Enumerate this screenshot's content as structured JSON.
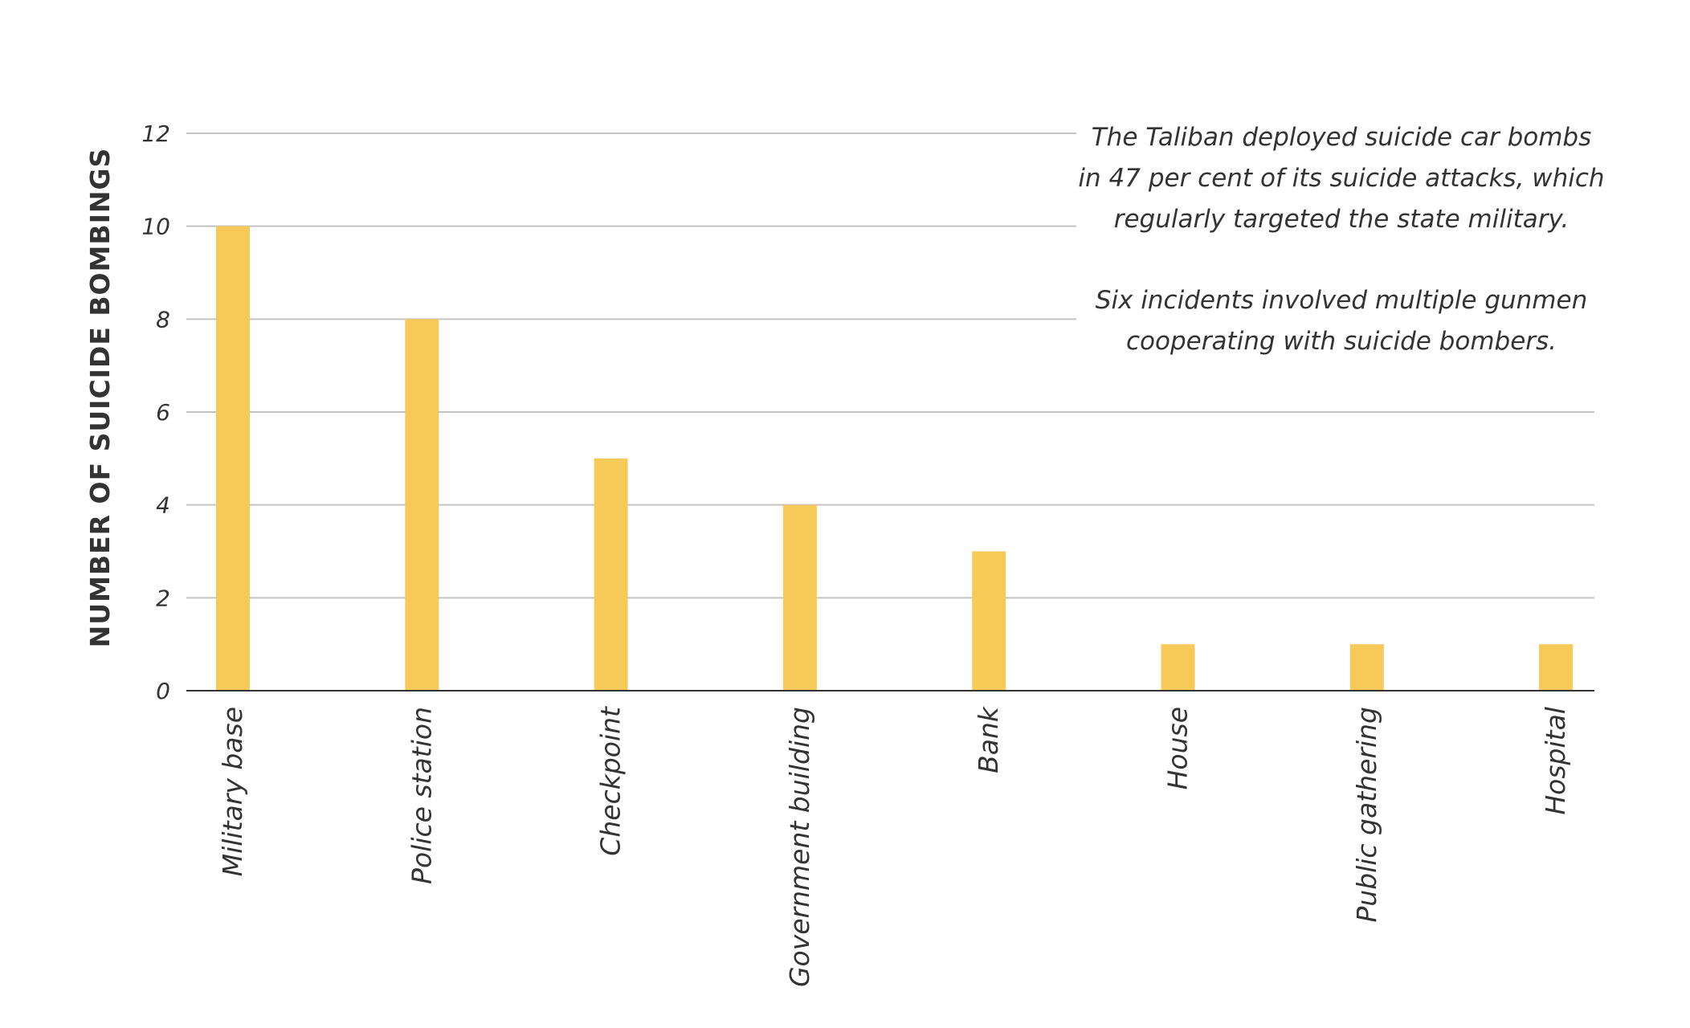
{
  "chart_data": {
    "type": "bar",
    "categories": [
      "Military base",
      "Police station",
      "Checkpoint",
      "Government building",
      "Bank",
      "House",
      "Public gathering",
      "Hospital"
    ],
    "values": [
      10,
      8,
      5,
      4,
      3,
      1,
      1,
      1
    ],
    "title": "",
    "xlabel": "",
    "ylabel": "NUMBER OF SUICIDE BOMBINGS",
    "ylim": [
      0,
      12
    ],
    "yticks": [
      0,
      2,
      4,
      6,
      8,
      10,
      12
    ],
    "grid": true,
    "legend": "none",
    "bar_color": "#f7c958",
    "annotations": [
      "The Taliban deployed suicide car bombs in 47 per cent of its suicide attacks, which regularly targeted the state military.",
      "Six incidents involved multiple gunmen cooperating with suicide bombers."
    ]
  }
}
